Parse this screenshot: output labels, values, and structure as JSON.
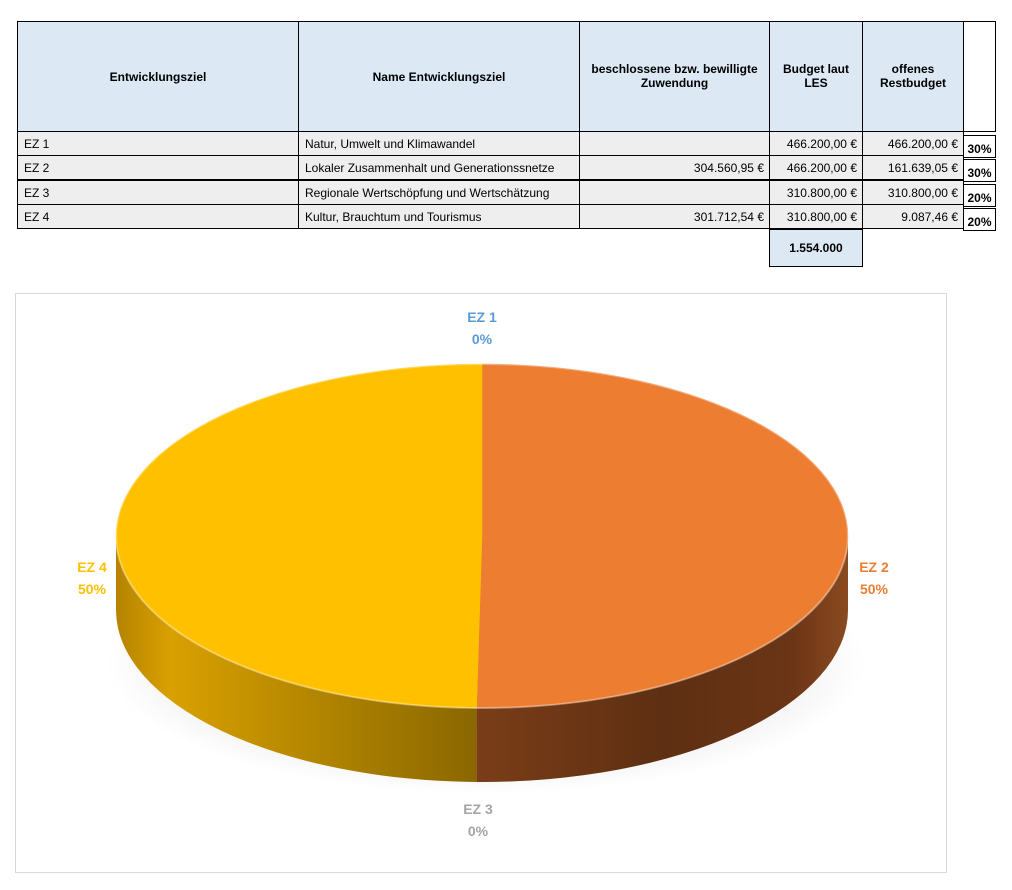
{
  "table": {
    "headers": {
      "ez": "Entwicklungsziel",
      "name": "Name Entwicklungsziel",
      "zuwendung": "beschlossene bzw. bewilligte Zuwendung",
      "budget": "Budget laut LES",
      "rest": "offenes Restbudget"
    },
    "rows": [
      {
        "ez": "EZ 1",
        "name": "Natur, Umwelt und Klimawandel",
        "zuwendung": "",
        "budget": "466.200,00 €",
        "rest": "466.200,00 €",
        "pct": "30%"
      },
      {
        "ez": "EZ 2",
        "name": "Lokaler Zusammenhalt und Generationssnetze",
        "zuwendung": "304.560,95 €",
        "budget": "466.200,00 €",
        "rest": "161.639,05 €",
        "pct": "30%"
      },
      {
        "ez": "EZ 3",
        "name": "Regionale Wertschöpfung und Wertschätzung",
        "zuwendung": "",
        "budget": "310.800,00 €",
        "rest": "310.800,00 €",
        "pct": "20%"
      },
      {
        "ez": "EZ 4",
        "name": "Kultur, Brauchtum und Tourismus",
        "zuwendung": "301.712,54 €",
        "budget": "310.800,00 €",
        "rest": "9.087,46 €",
        "pct": "20%"
      }
    ],
    "total": "1.554.000"
  },
  "chart_data": {
    "type": "pie",
    "title": "",
    "categories": [
      "EZ 1",
      "EZ 2",
      "EZ 3",
      "EZ 4"
    ],
    "values": [
      0,
      304560.95,
      0,
      301712.54
    ],
    "percent_labels": [
      "0%",
      "50%",
      "0%",
      "50%"
    ],
    "colors": [
      "#5b9bd5",
      "#ed7d31",
      "#a5a5a5",
      "#ffc000"
    ],
    "style": "3d",
    "legend": "none"
  }
}
